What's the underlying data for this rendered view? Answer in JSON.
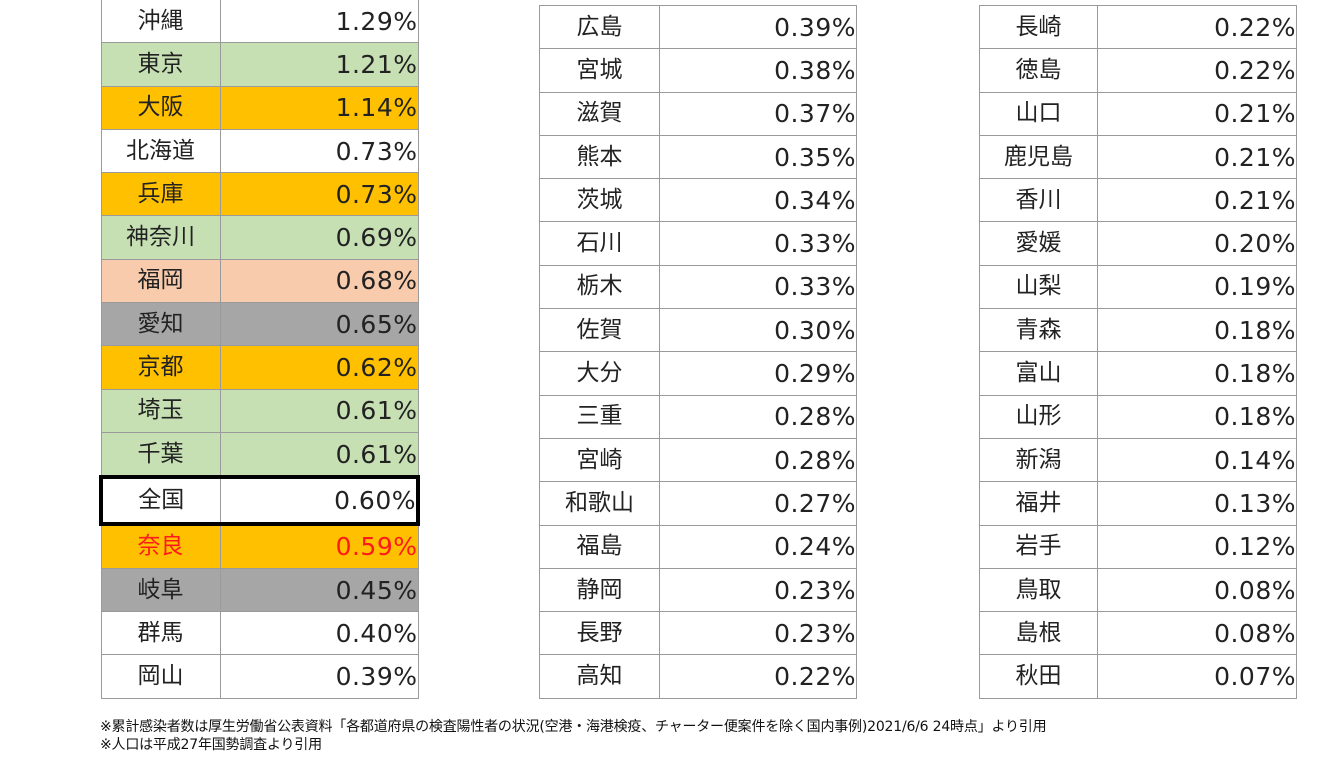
{
  "columns": [
    [
      {
        "name": "沖縄",
        "value": "1.29%",
        "fill": ""
      },
      {
        "name": "東京",
        "value": "1.21%",
        "fill": "#c6e0b4"
      },
      {
        "name": "大阪",
        "value": "1.14%",
        "fill": "#ffc000"
      },
      {
        "name": "北海道",
        "value": "0.73%",
        "fill": ""
      },
      {
        "name": "兵庫",
        "value": "0.73%",
        "fill": "#ffc000"
      },
      {
        "name": "神奈川",
        "value": "0.69%",
        "fill": "#c6e0b4"
      },
      {
        "name": "福岡",
        "value": "0.68%",
        "fill": "#f8cbad"
      },
      {
        "name": "愛知",
        "value": "0.65%",
        "fill": "#a6a6a6"
      },
      {
        "name": "京都",
        "value": "0.62%",
        "fill": "#ffc000"
      },
      {
        "name": "埼玉",
        "value": "0.61%",
        "fill": "#c6e0b4"
      },
      {
        "name": "千葉",
        "value": "0.61%",
        "fill": "#c6e0b4"
      },
      {
        "name": "全国",
        "value": "0.60%",
        "fill": "",
        "boxed": true
      },
      {
        "name": "奈良",
        "value": "0.59%",
        "fill": "#ffc000",
        "text_color": "#ff1a1a"
      },
      {
        "name": "岐阜",
        "value": "0.45%",
        "fill": "#a6a6a6"
      },
      {
        "name": "群馬",
        "value": "0.40%",
        "fill": ""
      },
      {
        "name": "岡山",
        "value": "0.39%",
        "fill": ""
      }
    ],
    [
      {
        "name": "広島",
        "value": "0.39%"
      },
      {
        "name": "宮城",
        "value": "0.38%"
      },
      {
        "name": "滋賀",
        "value": "0.37%"
      },
      {
        "name": "熊本",
        "value": "0.35%"
      },
      {
        "name": "茨城",
        "value": "0.34%"
      },
      {
        "name": "石川",
        "value": "0.33%"
      },
      {
        "name": "栃木",
        "value": "0.33%"
      },
      {
        "name": "佐賀",
        "value": "0.30%"
      },
      {
        "name": "大分",
        "value": "0.29%"
      },
      {
        "name": "三重",
        "value": "0.28%"
      },
      {
        "name": "宮崎",
        "value": "0.28%"
      },
      {
        "name": "和歌山",
        "value": "0.27%"
      },
      {
        "name": "福島",
        "value": "0.24%"
      },
      {
        "name": "静岡",
        "value": "0.23%"
      },
      {
        "name": "長野",
        "value": "0.23%"
      },
      {
        "name": "高知",
        "value": "0.22%"
      }
    ],
    [
      {
        "name": "長崎",
        "value": "0.22%"
      },
      {
        "name": "徳島",
        "value": "0.22%"
      },
      {
        "name": "山口",
        "value": "0.21%"
      },
      {
        "name": "鹿児島",
        "value": "0.21%"
      },
      {
        "name": "香川",
        "value": "0.21%"
      },
      {
        "name": "愛媛",
        "value": "0.20%"
      },
      {
        "name": "山梨",
        "value": "0.19%"
      },
      {
        "name": "青森",
        "value": "0.18%"
      },
      {
        "name": "富山",
        "value": "0.18%"
      },
      {
        "name": "山形",
        "value": "0.18%"
      },
      {
        "name": "新潟",
        "value": "0.14%"
      },
      {
        "name": "福井",
        "value": "0.13%"
      },
      {
        "name": "岩手",
        "value": "0.12%"
      },
      {
        "name": "鳥取",
        "value": "0.08%"
      },
      {
        "name": "島根",
        "value": "0.08%"
      },
      {
        "name": "秋田",
        "value": "0.07%"
      }
    ]
  ],
  "notes": {
    "line1": "※累計感染者数は厚生労働省公表資料「各都道府県の検査陽性者の状況(空港・海港検疫、チャーター便案件を除く国内事例)2021/6/6 24時点」より引用",
    "line2": "※人口は平成27年国勢調査より引用"
  }
}
